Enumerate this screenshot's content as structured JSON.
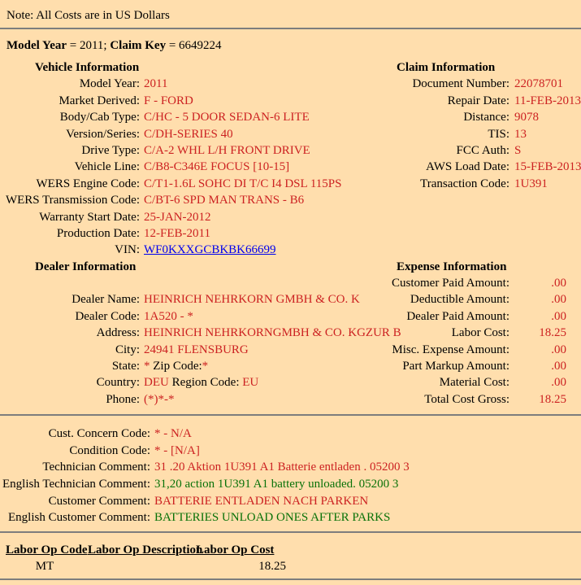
{
  "note": "Note: All Costs are in US Dollars",
  "claim_header": {
    "parts": [
      {
        "t": "Model Year",
        "b": true
      },
      {
        "t": " = 2011; ",
        "b": false
      },
      {
        "t": "Claim Key",
        "b": true
      },
      {
        "t": " = 6649224",
        "b": false
      }
    ]
  },
  "colors": {
    "background": "#ffdead",
    "value_red": "#cc2222",
    "value_green": "#087208",
    "link_blue": "#0000ee",
    "rule_gray": "#7d7d7d"
  },
  "main": {
    "sections": [
      {
        "heading_left": "Vehicle Information",
        "heading_right": "Claim Information",
        "right_value_align": "left",
        "rows": [
          {
            "l": "Model Year:",
            "lv": [
              {
                "t": "2011",
                "c": "red"
              }
            ],
            "r": "Document Number:",
            "rv": [
              {
                "t": "22078701",
                "c": "red"
              }
            ]
          },
          {
            "l": "Market Derived:",
            "lv": [
              {
                "t": "F - FORD",
                "c": "red"
              }
            ],
            "r": "Repair Date:",
            "rv": [
              {
                "t": "11-FEB-2013",
                "c": "red"
              }
            ]
          },
          {
            "l": "Body/Cab Type:",
            "lv": [
              {
                "t": "C/HC - 5 DOOR SEDAN-6 LITE",
                "c": "red"
              }
            ],
            "r": "Distance:",
            "rv": [
              {
                "t": "9078",
                "c": "red"
              }
            ]
          },
          {
            "l": "Version/Series:",
            "lv": [
              {
                "t": "C/DH-SERIES 40",
                "c": "red"
              }
            ],
            "r": "TIS:",
            "rv": [
              {
                "t": "13",
                "c": "red"
              }
            ]
          },
          {
            "l": "Drive Type:",
            "lv": [
              {
                "t": "C/A-2 WHL L/H FRONT DRIVE",
                "c": "red"
              }
            ],
            "r": "FCC Auth:",
            "rv": [
              {
                "t": "S",
                "c": "red"
              }
            ]
          },
          {
            "l": "Vehicle Line:",
            "lv": [
              {
                "t": "C/B8-C346E FOCUS [10-15]",
                "c": "red"
              }
            ],
            "r": "AWS Load Date:",
            "rv": [
              {
                "t": "15-FEB-2013",
                "c": "red"
              }
            ]
          },
          {
            "l": "WERS Engine Code:",
            "lv": [
              {
                "t": "C/T1-1.6L SOHC DI T/C I4 DSL 115PS",
                "c": "red"
              }
            ],
            "r": "Transaction Code:",
            "rv": [
              {
                "t": "1U391",
                "c": "red"
              }
            ]
          },
          {
            "l": "WERS Transmission Code:",
            "lv": [
              {
                "t": "C/BT-6 SPD MAN TRANS - B6",
                "c": "red"
              }
            ],
            "r": "",
            "rv": []
          },
          {
            "l": "Warranty Start Date:",
            "lv": [
              {
                "t": "25-JAN-2012",
                "c": "red"
              }
            ],
            "r": "",
            "rv": []
          },
          {
            "l": "Production Date:",
            "lv": [
              {
                "t": "12-FEB-2011",
                "c": "red"
              }
            ],
            "r": "",
            "rv": []
          },
          {
            "l": "VIN:",
            "lv": [
              {
                "t": "WF0KXXGCBKBK66699",
                "c": "link",
                "link": true
              }
            ],
            "r": "",
            "rv": []
          }
        ]
      },
      {
        "heading_left": "Dealer Information",
        "heading_right": "Expense Information",
        "right_value_align": "right",
        "rows": [
          {
            "l": "",
            "lv": [],
            "r": "Customer Paid Amount:",
            "rv": [
              {
                "t": ".00",
                "c": "red"
              }
            ]
          },
          {
            "l": "Dealer Name:",
            "lv": [
              {
                "t": "HEINRICH NEHRKORN GMBH & CO. K",
                "c": "red"
              }
            ],
            "r": "Deductible Amount:",
            "rv": [
              {
                "t": ".00",
                "c": "red"
              }
            ]
          },
          {
            "l": "Dealer Code:",
            "lv": [
              {
                "t": "1A520 - *",
                "c": "red"
              }
            ],
            "r": "Dealer Paid Amount:",
            "rv": [
              {
                "t": ".00",
                "c": "red"
              }
            ]
          },
          {
            "l": "Address:",
            "lv": [
              {
                "t": "HEINRICH NEHRKORNGMBH & CO. KGZUR B",
                "c": "red"
              }
            ],
            "r": "Labor Cost:",
            "rv": [
              {
                "t": "18.25",
                "c": "red"
              }
            ]
          },
          {
            "l": "City:",
            "lv": [
              {
                "t": "24941 FLENSBURG",
                "c": "red"
              }
            ],
            "r": "Misc. Expense Amount:",
            "rv": [
              {
                "t": ".00",
                "c": "red"
              }
            ]
          },
          {
            "l": "State:",
            "lv": [
              {
                "t": "* ",
                "c": "red"
              },
              {
                "t": "Zip Code:",
                "c": "blk"
              },
              {
                "t": "*",
                "c": "red"
              }
            ],
            "r": "Part Markup Amount:",
            "rv": [
              {
                "t": ".00",
                "c": "red"
              }
            ]
          },
          {
            "l": "Country:",
            "lv": [
              {
                "t": "DEU",
                "c": "red"
              },
              {
                "t": " Region Code: ",
                "c": "blk"
              },
              {
                "t": "EU",
                "c": "red"
              }
            ],
            "r": "Material Cost:",
            "rv": [
              {
                "t": ".00",
                "c": "red"
              }
            ]
          },
          {
            "l": "Phone:",
            "lv": [
              {
                "t": "(*)*-*",
                "c": "red"
              }
            ],
            "r": "Total Cost Gross:",
            "rv": [
              {
                "t": "18.25",
                "c": "red"
              }
            ]
          }
        ]
      }
    ]
  },
  "comments": {
    "rows": [
      {
        "label": "Cust. Concern Code:",
        "value": "* - N/A",
        "color": "red"
      },
      {
        "label": "Condition Code:",
        "value": "* - [N/A]",
        "color": "red"
      },
      {
        "label": "Technician Comment:",
        "value": "31 .20 Aktion 1U391 A1 Batterie entladen . 05200 3",
        "color": "red"
      },
      {
        "label": "English Technician Comment:",
        "value": "31,20 action 1U391 A1 battery unloaded. 05200 3",
        "color": "green"
      },
      {
        "label": "Customer Comment:",
        "value": "BATTERIE ENTLADEN NACH PARKEN",
        "color": "red"
      },
      {
        "label": "English Customer Comment:",
        "value": "BATTERIES UNLOAD ONES AFTER PARKS",
        "color": "green"
      }
    ]
  },
  "labor": {
    "headers": [
      "Labor Op Code",
      "Labor Op Description",
      "Labor Op Cost"
    ],
    "rows": [
      [
        "MT",
        "",
        "18.25"
      ]
    ]
  }
}
